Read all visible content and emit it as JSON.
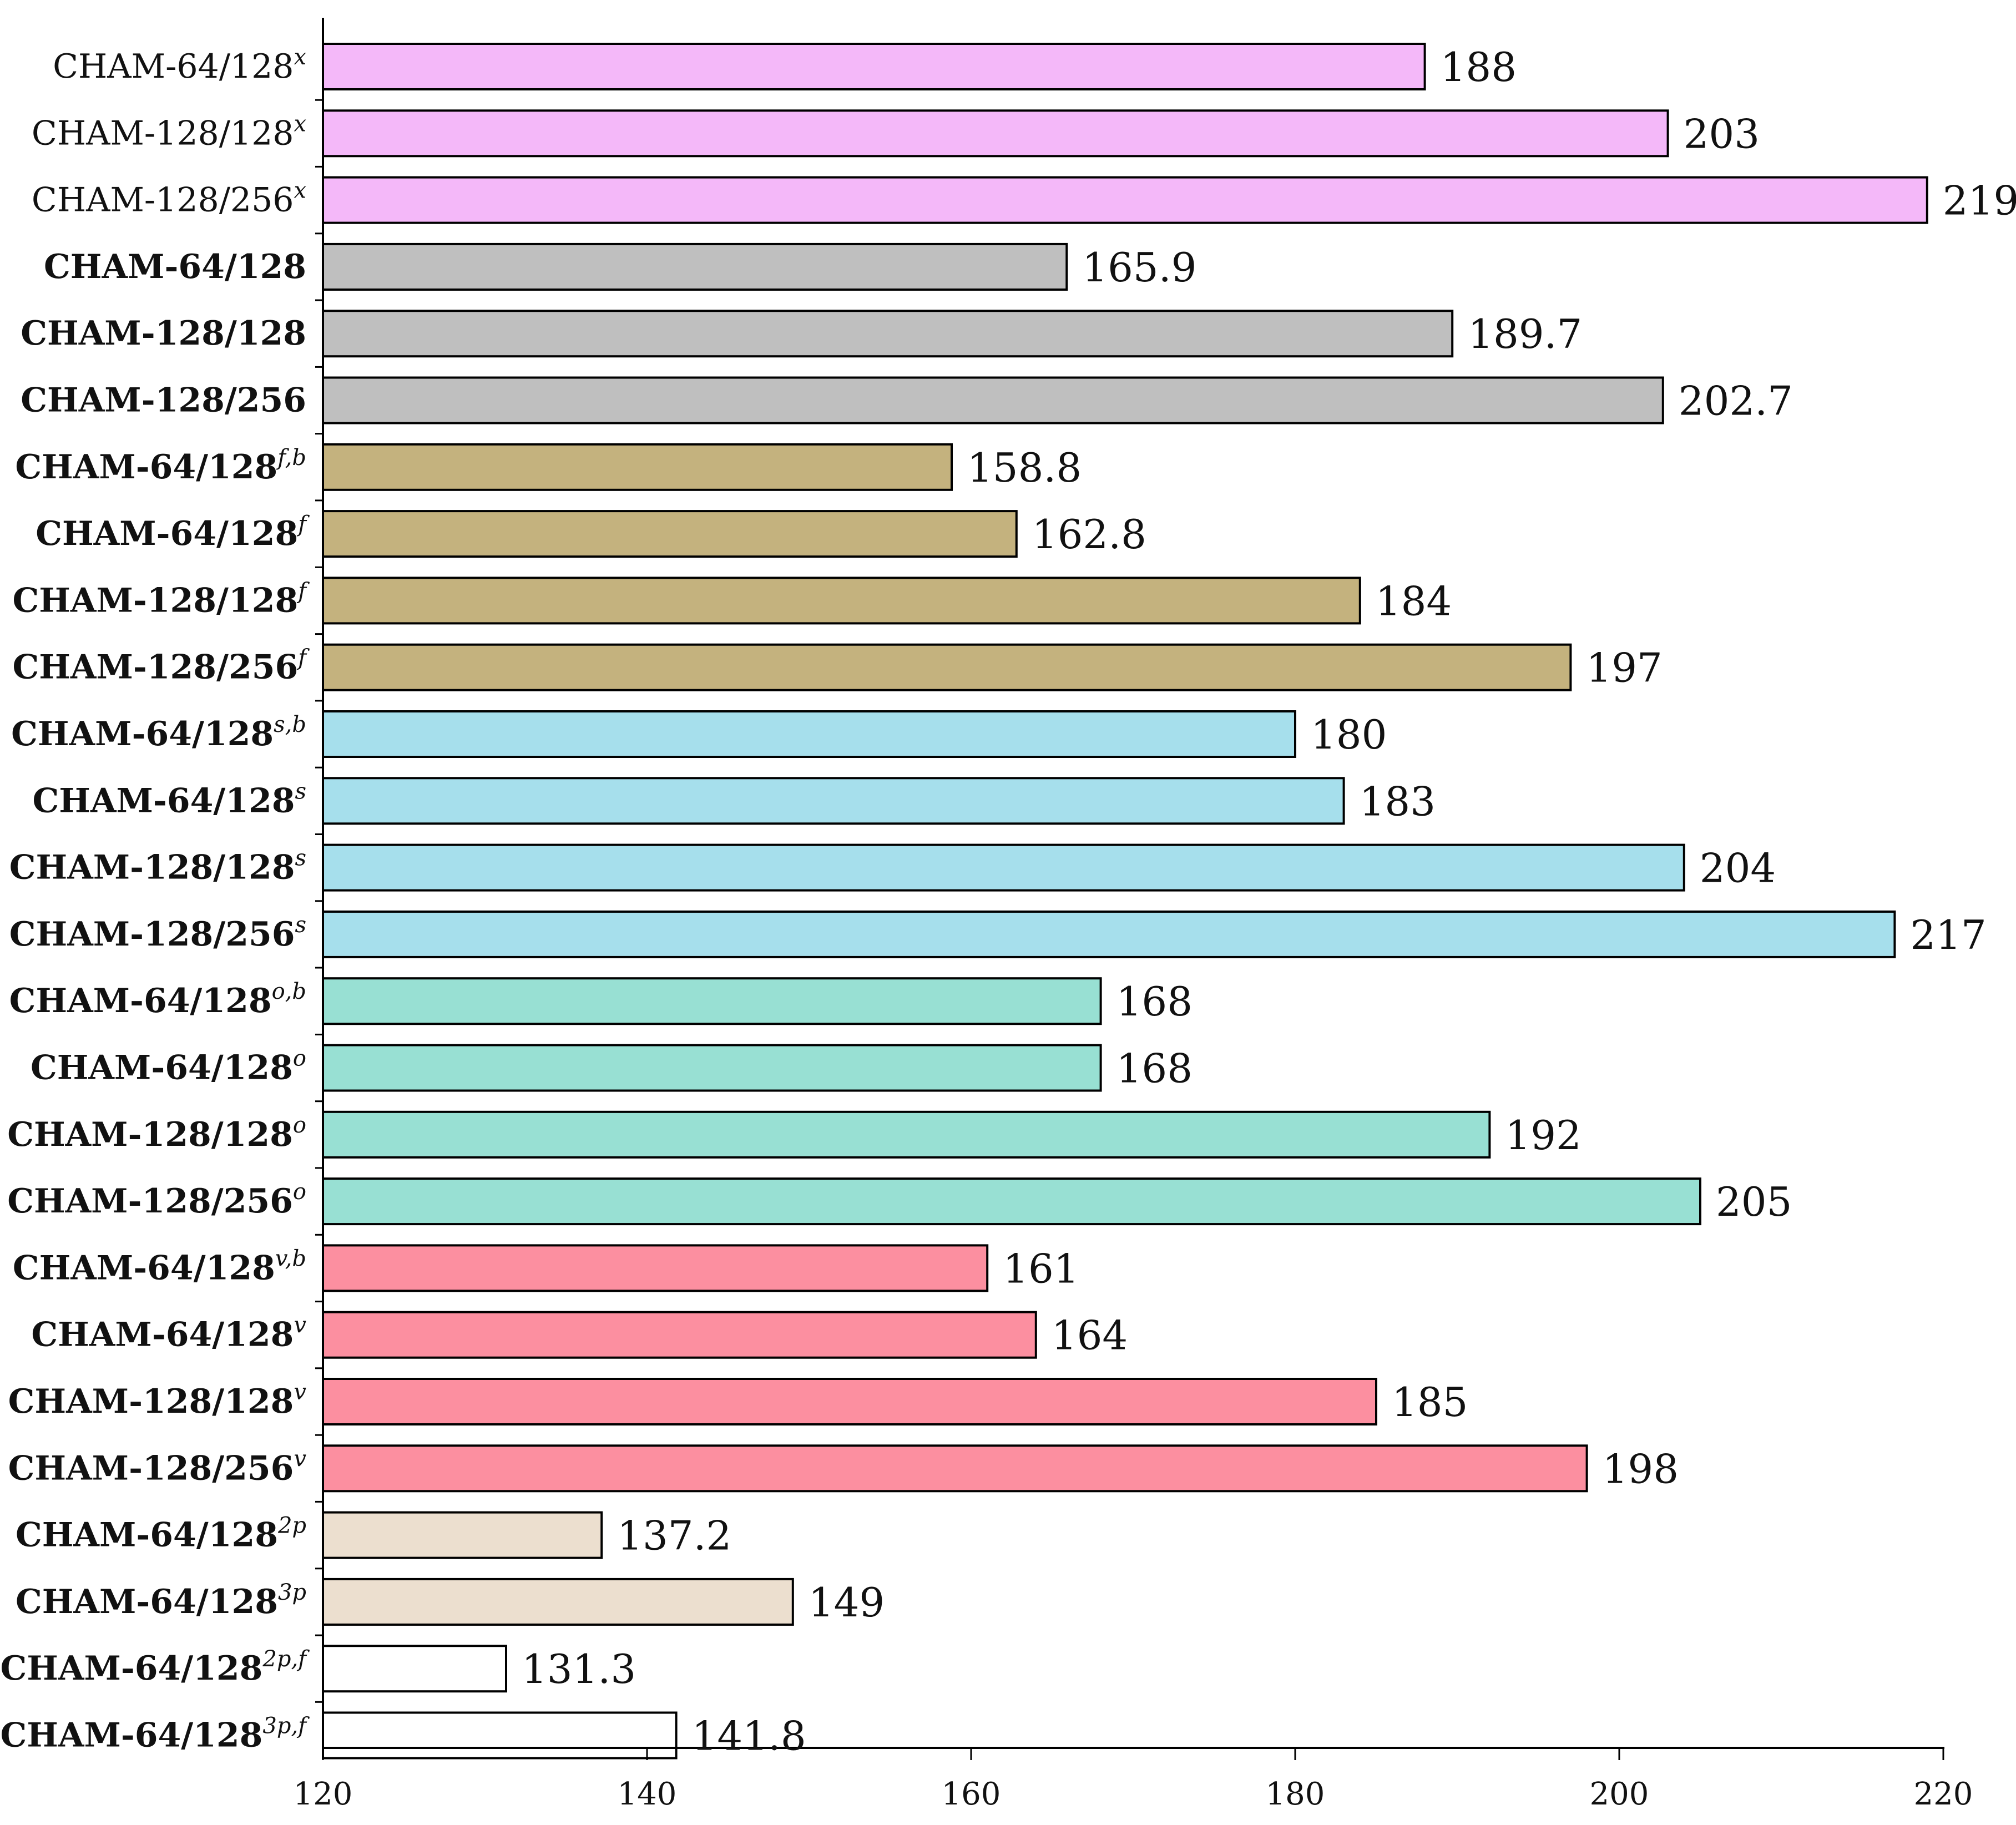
{
  "chart_data": {
    "type": "bar",
    "orientation": "horizontal",
    "title": "",
    "xlabel": "",
    "ylabel": "",
    "xlim": [
      120,
      220
    ],
    "x_ticks": [
      "120",
      "140",
      "160",
      "180",
      "200",
      "220"
    ],
    "grid": false,
    "legend": "none",
    "categories": [
      {
        "base": "CHAM-64/128",
        "sup": "x",
        "bold": false
      },
      {
        "base": "CHAM-128/128",
        "sup": "x",
        "bold": false
      },
      {
        "base": "CHAM-128/256",
        "sup": "x",
        "bold": false
      },
      {
        "base": "CHAM-64/128",
        "sup": "",
        "bold": true
      },
      {
        "base": "CHAM-128/128",
        "sup": "",
        "bold": true
      },
      {
        "base": "CHAM-128/256",
        "sup": "",
        "bold": true
      },
      {
        "base": "CHAM-64/128",
        "sup": "f,b",
        "bold": true
      },
      {
        "base": "CHAM-64/128",
        "sup": "f",
        "bold": true
      },
      {
        "base": "CHAM-128/128",
        "sup": "f",
        "bold": true
      },
      {
        "base": "CHAM-128/256",
        "sup": "f",
        "bold": true
      },
      {
        "base": "CHAM-64/128",
        "sup": "s,b",
        "bold": true
      },
      {
        "base": "CHAM-64/128",
        "sup": "s",
        "bold": true
      },
      {
        "base": "CHAM-128/128",
        "sup": "s",
        "bold": true
      },
      {
        "base": "CHAM-128/256",
        "sup": "s",
        "bold": true
      },
      {
        "base": "CHAM-64/128",
        "sup": "o,b",
        "bold": true
      },
      {
        "base": "CHAM-64/128",
        "sup": "o",
        "bold": true
      },
      {
        "base": "CHAM-128/128",
        "sup": "o",
        "bold": true
      },
      {
        "base": "CHAM-128/256",
        "sup": "o",
        "bold": true
      },
      {
        "base": "CHAM-64/128",
        "sup": "v,b",
        "bold": true
      },
      {
        "base": "CHAM-64/128",
        "sup": "v",
        "bold": true
      },
      {
        "base": "CHAM-128/128",
        "sup": "v",
        "bold": true
      },
      {
        "base": "CHAM-128/256",
        "sup": "v",
        "bold": true
      },
      {
        "base": "CHAM-64/128",
        "sup": "2p",
        "bold": true
      },
      {
        "base": "CHAM-64/128",
        "sup": "3p",
        "bold": true
      },
      {
        "base": "CHAM-64/128",
        "sup": "2p,f",
        "bold": true
      },
      {
        "base": "CHAM-64/128",
        "sup": "3p,f",
        "bold": true
      }
    ],
    "values": [
      188,
      203,
      219,
      165.9,
      189.7,
      202.7,
      158.8,
      162.8,
      184,
      197,
      180,
      183,
      204,
      217,
      168,
      168,
      192,
      205,
      161,
      164,
      185,
      198,
      137.2,
      149,
      131.3,
      141.8
    ],
    "value_labels": [
      "188",
      "203",
      "219",
      "165.9",
      "189.7",
      "202.7",
      "158.8",
      "162.8",
      "184",
      "197",
      "180",
      "183",
      "204",
      "217",
      "168",
      "168",
      "192",
      "205",
      "161",
      "164",
      "185",
      "198",
      "137.2",
      "149",
      "131.3",
      "141.8"
    ],
    "colors": [
      "#f4b8f9",
      "#f4b8f9",
      "#f4b8f9",
      "#bfbfbf",
      "#bfbfbf",
      "#bfbfbf",
      "#c4b27e",
      "#c4b27e",
      "#c4b27e",
      "#c4b27e",
      "#a6dfec",
      "#a6dfec",
      "#a6dfec",
      "#a6dfec",
      "#98e0d3",
      "#98e0d3",
      "#98e0d3",
      "#98e0d3",
      "#fc8fa0",
      "#fc8fa0",
      "#fc8fa0",
      "#fc8fa0",
      "#ecdfcf",
      "#ecdfcf",
      "#ffffff",
      "#ffffff"
    ]
  }
}
